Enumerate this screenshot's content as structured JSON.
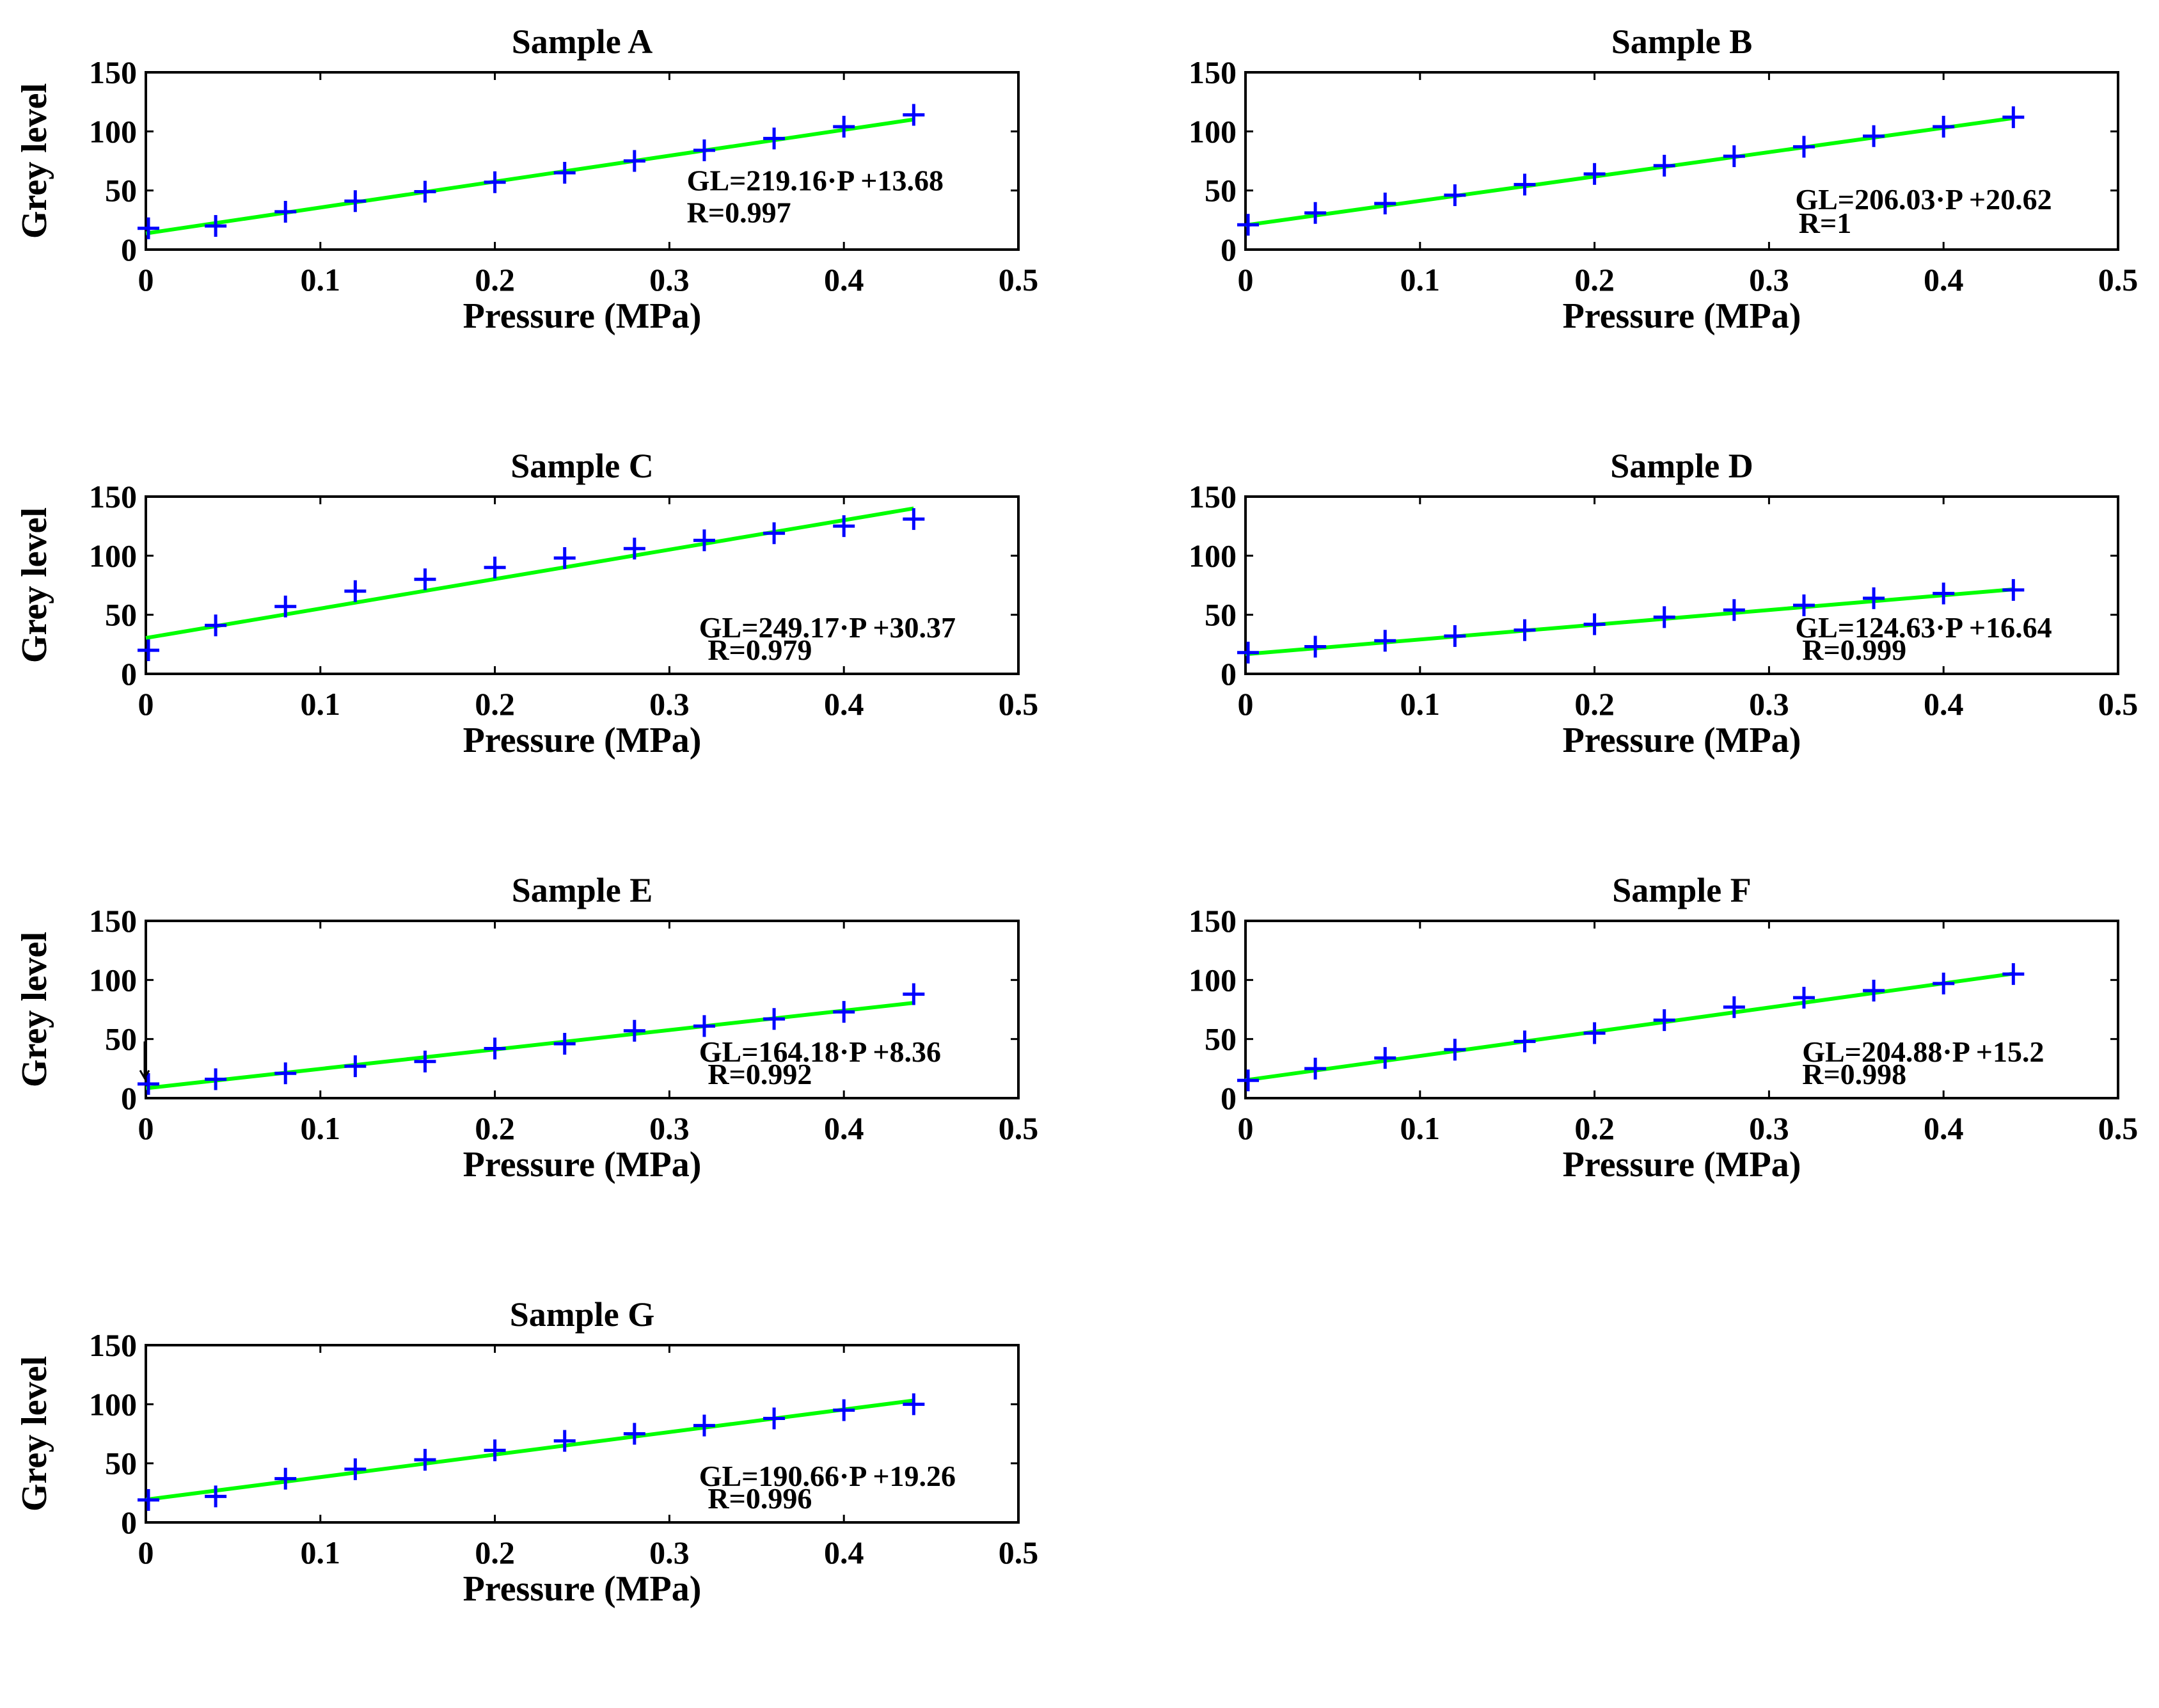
{
  "chart_data": [
    {
      "type": "scatter",
      "title": "Sample A",
      "xlabel": "Pressure (MPa)",
      "ylabel": "Grey level",
      "xlim": [
        0,
        0.5
      ],
      "ylim": [
        0,
        150
      ],
      "xticks": [
        "0",
        "0.1",
        "0.2",
        "0.3",
        "0.4",
        "0.5"
      ],
      "yticks": [
        "0",
        "50",
        "100",
        "150"
      ],
      "grid": false,
      "series": [
        {
          "kind": "points",
          "color": "#0000ff",
          "marker": "plus",
          "x": [
            0,
            0.04,
            0.08,
            0.12,
            0.16,
            0.2,
            0.24,
            0.28,
            0.32,
            0.36,
            0.4,
            0.44
          ],
          "y": [
            18,
            20,
            32,
            41,
            49,
            57,
            65,
            75,
            84,
            94,
            104,
            114
          ]
        },
        {
          "kind": "fit",
          "color": "#00ff00",
          "slope": 219.16,
          "intercept": 13.68,
          "x_range": [
            0,
            0.44
          ]
        }
      ],
      "annotations": [
        "GL=219.16·P +13.68",
        "R=0.997"
      ],
      "annotation_pos": [
        [
          0.31,
          50
        ],
        [
          0.31,
          23
        ]
      ]
    },
    {
      "type": "scatter",
      "title": "Sample B",
      "xlabel": "Pressure (MPa)",
      "ylabel": "Grey level",
      "xlim": [
        0,
        0.5
      ],
      "ylim": [
        0,
        150
      ],
      "xticks": [
        "0",
        "0.1",
        "0.2",
        "0.3",
        "0.4",
        "0.5"
      ],
      "yticks": [
        "0",
        "50",
        "100",
        "150"
      ],
      "grid": false,
      "series": [
        {
          "kind": "points",
          "color": "#0000ff",
          "marker": "plus",
          "x": [
            0,
            0.04,
            0.08,
            0.12,
            0.16,
            0.2,
            0.24,
            0.28,
            0.32,
            0.36,
            0.4,
            0.44
          ],
          "y": [
            21,
            31,
            39,
            46,
            55,
            64,
            71,
            79,
            87,
            96,
            104,
            112
          ]
        },
        {
          "kind": "fit",
          "color": "#00ff00",
          "slope": 206.03,
          "intercept": 20.62,
          "x_range": [
            0,
            0.44
          ]
        }
      ],
      "annotations": [
        "GL=206.03·P +20.62",
        "R=1"
      ],
      "annotation_pos": [
        [
          0.315,
          34
        ],
        [
          0.317,
          14
        ]
      ]
    },
    {
      "type": "scatter",
      "title": "Sample C",
      "xlabel": "Pressure (MPa)",
      "ylabel": "Grey level",
      "xlim": [
        0,
        0.5
      ],
      "ylim": [
        0,
        150
      ],
      "xticks": [
        "0",
        "0.1",
        "0.2",
        "0.3",
        "0.4",
        "0.5"
      ],
      "yticks": [
        "0",
        "50",
        "100",
        "150"
      ],
      "grid": false,
      "series": [
        {
          "kind": "points",
          "color": "#0000ff",
          "marker": "plus",
          "x": [
            0,
            0.04,
            0.08,
            0.12,
            0.16,
            0.2,
            0.24,
            0.28,
            0.32,
            0.36,
            0.4,
            0.44
          ],
          "y": [
            20,
            41,
            57,
            70,
            80,
            90,
            98,
            106,
            113,
            119,
            125,
            131
          ]
        },
        {
          "kind": "fit",
          "color": "#00ff00",
          "slope": 249.17,
          "intercept": 30.37,
          "x_range": [
            0,
            0.44
          ]
        }
      ],
      "annotations": [
        "GL=249.17·P +30.37",
        "R=0.979"
      ],
      "annotation_pos": [
        [
          0.317,
          31
        ],
        [
          0.322,
          12
        ]
      ]
    },
    {
      "type": "scatter",
      "title": "Sample D",
      "xlabel": "Pressure (MPa)",
      "ylabel": "Grey level",
      "xlim": [
        0,
        0.5
      ],
      "ylim": [
        0,
        150
      ],
      "xticks": [
        "0",
        "0.1",
        "0.2",
        "0.3",
        "0.4",
        "0.5"
      ],
      "yticks": [
        "0",
        "50",
        "100",
        "150"
      ],
      "grid": false,
      "series": [
        {
          "kind": "points",
          "color": "#0000ff",
          "marker": "plus",
          "x": [
            0,
            0.04,
            0.08,
            0.12,
            0.16,
            0.2,
            0.24,
            0.28,
            0.32,
            0.36,
            0.4,
            0.44
          ],
          "y": [
            18,
            23,
            28,
            32,
            37,
            42,
            48,
            54,
            58,
            64,
            68,
            71
          ]
        },
        {
          "kind": "fit",
          "color": "#00ff00",
          "slope": 124.63,
          "intercept": 16.64,
          "x_range": [
            0,
            0.44
          ]
        }
      ],
      "annotations": [
        "GL=124.63·P +16.64",
        "R=0.999"
      ],
      "annotation_pos": [
        [
          0.315,
          31
        ],
        [
          0.319,
          12
        ]
      ]
    },
    {
      "type": "scatter",
      "title": "Sample E",
      "xlabel": "Pressure (MPa)",
      "ylabel": "Grey level",
      "xlim": [
        0,
        0.5
      ],
      "ylim": [
        0,
        150
      ],
      "xticks": [
        "0",
        "0.1",
        "0.2",
        "0.3",
        "0.4",
        "0.5"
      ],
      "yticks": [
        "0",
        "50",
        "100",
        "150"
      ],
      "grid": false,
      "series": [
        {
          "kind": "points",
          "color": "#0000ff",
          "marker": "plus",
          "x": [
            0,
            0.04,
            0.08,
            0.12,
            0.16,
            0.2,
            0.24,
            0.28,
            0.32,
            0.36,
            0.4,
            0.44
          ],
          "y": [
            12,
            16,
            21,
            27,
            31,
            42,
            46,
            57,
            61,
            67,
            73,
            88
          ]
        },
        {
          "kind": "fit",
          "color": "#00ff00",
          "slope": 164.18,
          "intercept": 8.36,
          "x_range": [
            0,
            0.44
          ]
        }
      ],
      "annotations": [
        "GL=164.18·P +8.36",
        "R=0.992"
      ],
      "annotation_pos": [
        [
          0.317,
          31
        ],
        [
          0.322,
          12
        ]
      ],
      "arrow": {
        "x": 0,
        "y_from": 48,
        "y_to": 17
      }
    },
    {
      "type": "scatter",
      "title": "Sample F",
      "xlabel": "Pressure (MPa)",
      "ylabel": "Grey level",
      "xlim": [
        0,
        0.5
      ],
      "ylim": [
        0,
        150
      ],
      "xticks": [
        "0",
        "0.1",
        "0.2",
        "0.3",
        "0.4",
        "0.5"
      ],
      "yticks": [
        "0",
        "50",
        "100",
        "150"
      ],
      "grid": false,
      "series": [
        {
          "kind": "points",
          "color": "#0000ff",
          "marker": "plus",
          "x": [
            0,
            0.04,
            0.08,
            0.12,
            0.16,
            0.2,
            0.24,
            0.28,
            0.32,
            0.36,
            0.4,
            0.44
          ],
          "y": [
            15,
            25,
            34,
            41,
            48,
            55,
            66,
            77,
            85,
            91,
            97,
            105
          ]
        },
        {
          "kind": "fit",
          "color": "#00ff00",
          "slope": 204.88,
          "intercept": 15.2,
          "x_range": [
            0,
            0.44
          ]
        }
      ],
      "annotations": [
        "GL=204.88·P +15.2",
        "R=0.998"
      ],
      "annotation_pos": [
        [
          0.319,
          31
        ],
        [
          0.319,
          12
        ]
      ]
    },
    {
      "type": "scatter",
      "title": "Sample G",
      "xlabel": "Pressure (MPa)",
      "ylabel": "Grey level",
      "xlim": [
        0,
        0.5
      ],
      "ylim": [
        0,
        150
      ],
      "xticks": [
        "0",
        "0.1",
        "0.2",
        "0.3",
        "0.4",
        "0.5"
      ],
      "yticks": [
        "0",
        "50",
        "100",
        "150"
      ],
      "grid": false,
      "series": [
        {
          "kind": "points",
          "color": "#0000ff",
          "marker": "plus",
          "x": [
            0,
            0.04,
            0.08,
            0.12,
            0.16,
            0.2,
            0.24,
            0.28,
            0.32,
            0.36,
            0.4,
            0.44
          ],
          "y": [
            19,
            22,
            37,
            45,
            53,
            61,
            69,
            75,
            82,
            88,
            95,
            100
          ]
        },
        {
          "kind": "fit",
          "color": "#00ff00",
          "slope": 190.66,
          "intercept": 19.26,
          "x_range": [
            0,
            0.44
          ]
        }
      ],
      "annotations": [
        "GL=190.66·P +19.26",
        "R=0.996"
      ],
      "annotation_pos": [
        [
          0.317,
          31
        ],
        [
          0.322,
          12
        ]
      ]
    }
  ]
}
